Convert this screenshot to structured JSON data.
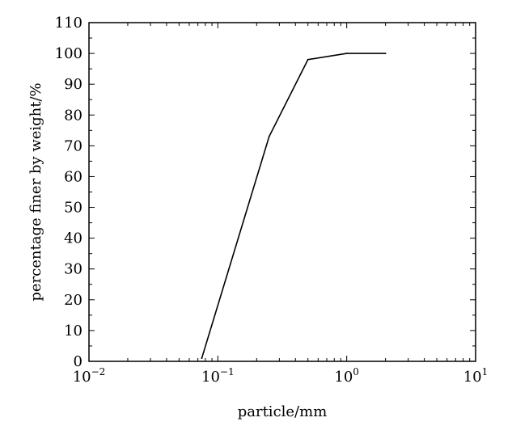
{
  "chart_data": {
    "type": "line",
    "xlabel": "particle/mm",
    "ylabel": "percentage finer by weight/%",
    "x_scale": "log",
    "xlim": [
      0.01,
      10
    ],
    "ylim": [
      0,
      110
    ],
    "x_ticks": [
      {
        "base": "10",
        "exp": "−2",
        "value": 0.01
      },
      {
        "base": "10",
        "exp": "−1",
        "value": 0.1
      },
      {
        "base": "10",
        "exp": "0",
        "value": 1
      },
      {
        "base": "10",
        "exp": "1",
        "value": 10
      }
    ],
    "y_ticks": [
      "0",
      "10",
      "20",
      "30",
      "40",
      "50",
      "60",
      "70",
      "80",
      "90",
      "100",
      "110"
    ],
    "grid": false,
    "series": [
      {
        "color": "#000000",
        "x": [
          0.075,
          0.25,
          0.5,
          1,
          2
        ],
        "y": [
          1,
          73,
          98,
          100,
          100
        ]
      }
    ]
  }
}
